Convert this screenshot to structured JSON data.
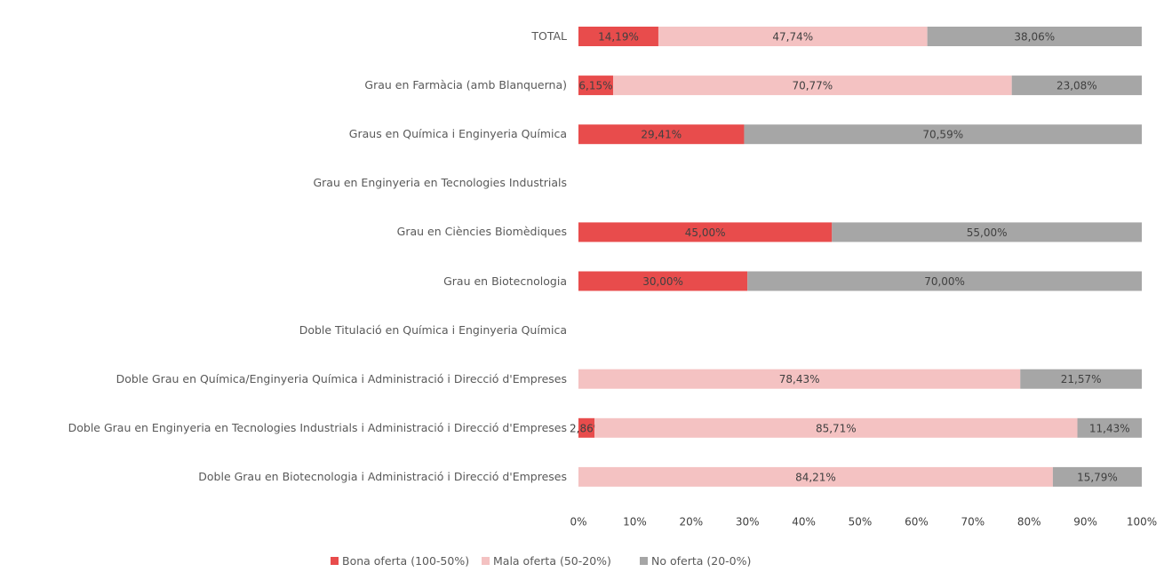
{
  "chart_data": {
    "type": "stacked_barh",
    "categories": [
      "TOTAL",
      "Grau en Farmàcia (amb Blanquerna)",
      "Graus en Química i Enginyeria Química",
      "Grau en Enginyeria en Tecnologies Industrials",
      "Grau en Ciències Biomèdiques",
      "Grau en Biotecnologia",
      "Doble Titulació en Química i Enginyeria Química",
      "Doble Grau en Química/Enginyeria Química i Administració i Direcció d'Empreses",
      "Doble Grau en Enginyeria en Tecnologies Industrials i Administració i Direcció d'Empreses",
      "Doble Grau en Biotecnologia i Administració i Direcció d'Empreses"
    ],
    "series": [
      {
        "name": "Bona oferta (100-50%)",
        "color": "#e84c4c",
        "values": [
          14.19,
          6.15,
          29.41,
          null,
          45,
          30,
          null,
          null,
          2.86,
          null
        ],
        "value_labels": [
          "14,19%",
          "6,15%",
          "29,41%",
          null,
          "45,00%",
          "30,00%",
          null,
          null,
          "2,86%",
          null
        ]
      },
      {
        "name": "Mala oferta (50-20%)",
        "color": "#f4c2c2",
        "values": [
          47.74,
          70.77,
          null,
          null,
          null,
          null,
          null,
          78.43,
          85.71,
          84.21
        ],
        "value_labels": [
          "47,74%",
          "70,77%",
          null,
          null,
          null,
          null,
          null,
          "78,43%",
          "85,71%",
          "84,21%"
        ]
      },
      {
        "name": "No oferta (20-0%)",
        "color": "#a6a6a6",
        "values": [
          38.06,
          23.08,
          70.59,
          null,
          55,
          70,
          null,
          21.57,
          11.43,
          15.79
        ],
        "value_labels": [
          "38,06%",
          "23,08%",
          "70,59%",
          null,
          "55,00%",
          "70,00%",
          null,
          "21,57%",
          "11,43%",
          "15,79%"
        ]
      }
    ],
    "xlim": [
      0,
      100
    ],
    "xticks": [
      {
        "value": 0,
        "label": "0%"
      },
      {
        "value": 10,
        "label": "10%"
      },
      {
        "value": 20,
        "label": "20%"
      },
      {
        "value": 30,
        "label": "30%"
      },
      {
        "value": 40,
        "label": "40%"
      },
      {
        "value": 50,
        "label": "50%"
      },
      {
        "value": 60,
        "label": "60%"
      },
      {
        "value": 70,
        "label": "70%"
      },
      {
        "value": 80,
        "label": "80%"
      },
      {
        "value": 90,
        "label": "90%"
      },
      {
        "value": 100,
        "label": "100%"
      }
    ],
    "legend": "bottom"
  }
}
